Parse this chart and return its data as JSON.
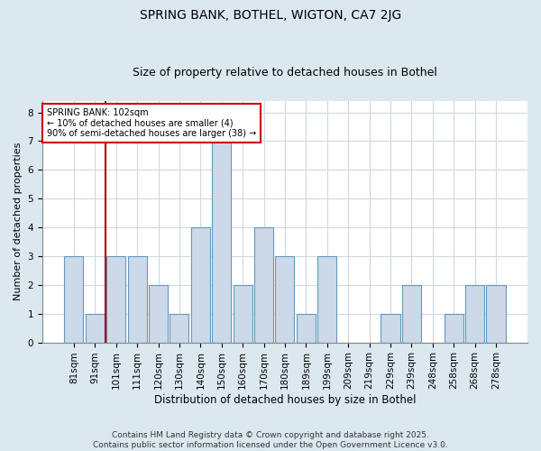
{
  "title": "SPRING BANK, BOTHEL, WIGTON, CA7 2JG",
  "subtitle": "Size of property relative to detached houses in Bothel",
  "xlabel": "Distribution of detached houses by size in Bothel",
  "ylabel": "Number of detached properties",
  "categories": [
    "81sqm",
    "91sqm",
    "101sqm",
    "111sqm",
    "120sqm",
    "130sqm",
    "140sqm",
    "150sqm",
    "160sqm",
    "170sqm",
    "180sqm",
    "189sqm",
    "199sqm",
    "209sqm",
    "219sqm",
    "229sqm",
    "239sqm",
    "248sqm",
    "258sqm",
    "268sqm",
    "278sqm"
  ],
  "values": [
    3,
    1,
    3,
    3,
    2,
    1,
    4,
    7,
    2,
    4,
    3,
    1,
    3,
    0,
    0,
    1,
    2,
    0,
    1,
    2,
    2
  ],
  "bar_color": "#ccd9e8",
  "bar_edge_color": "#6699bb",
  "annotation_label": "SPRING BANK: 102sqm",
  "annotation_line1": "← 10% of detached houses are smaller (4)",
  "annotation_line2": "90% of semi-detached houses are larger (38) →",
  "vline_x_index": 1,
  "vline_color": "#aa0000",
  "annotation_box_edge_color": "#cc0000",
  "annotation_box_face_color": "#ffffff",
  "ylim": [
    0,
    8.4
  ],
  "yticks": [
    0,
    1,
    2,
    3,
    4,
    5,
    6,
    7,
    8
  ],
  "outer_background_color": "#dce8f0",
  "plot_background_color": "#ffffff",
  "grid_color": "#d0d8e0",
  "footer": "Contains HM Land Registry data © Crown copyright and database right 2025.\nContains public sector information licensed under the Open Government Licence v3.0.",
  "title_fontsize": 10,
  "subtitle_fontsize": 9,
  "xlabel_fontsize": 8.5,
  "ylabel_fontsize": 8,
  "tick_fontsize": 7.5,
  "footer_fontsize": 6.5
}
